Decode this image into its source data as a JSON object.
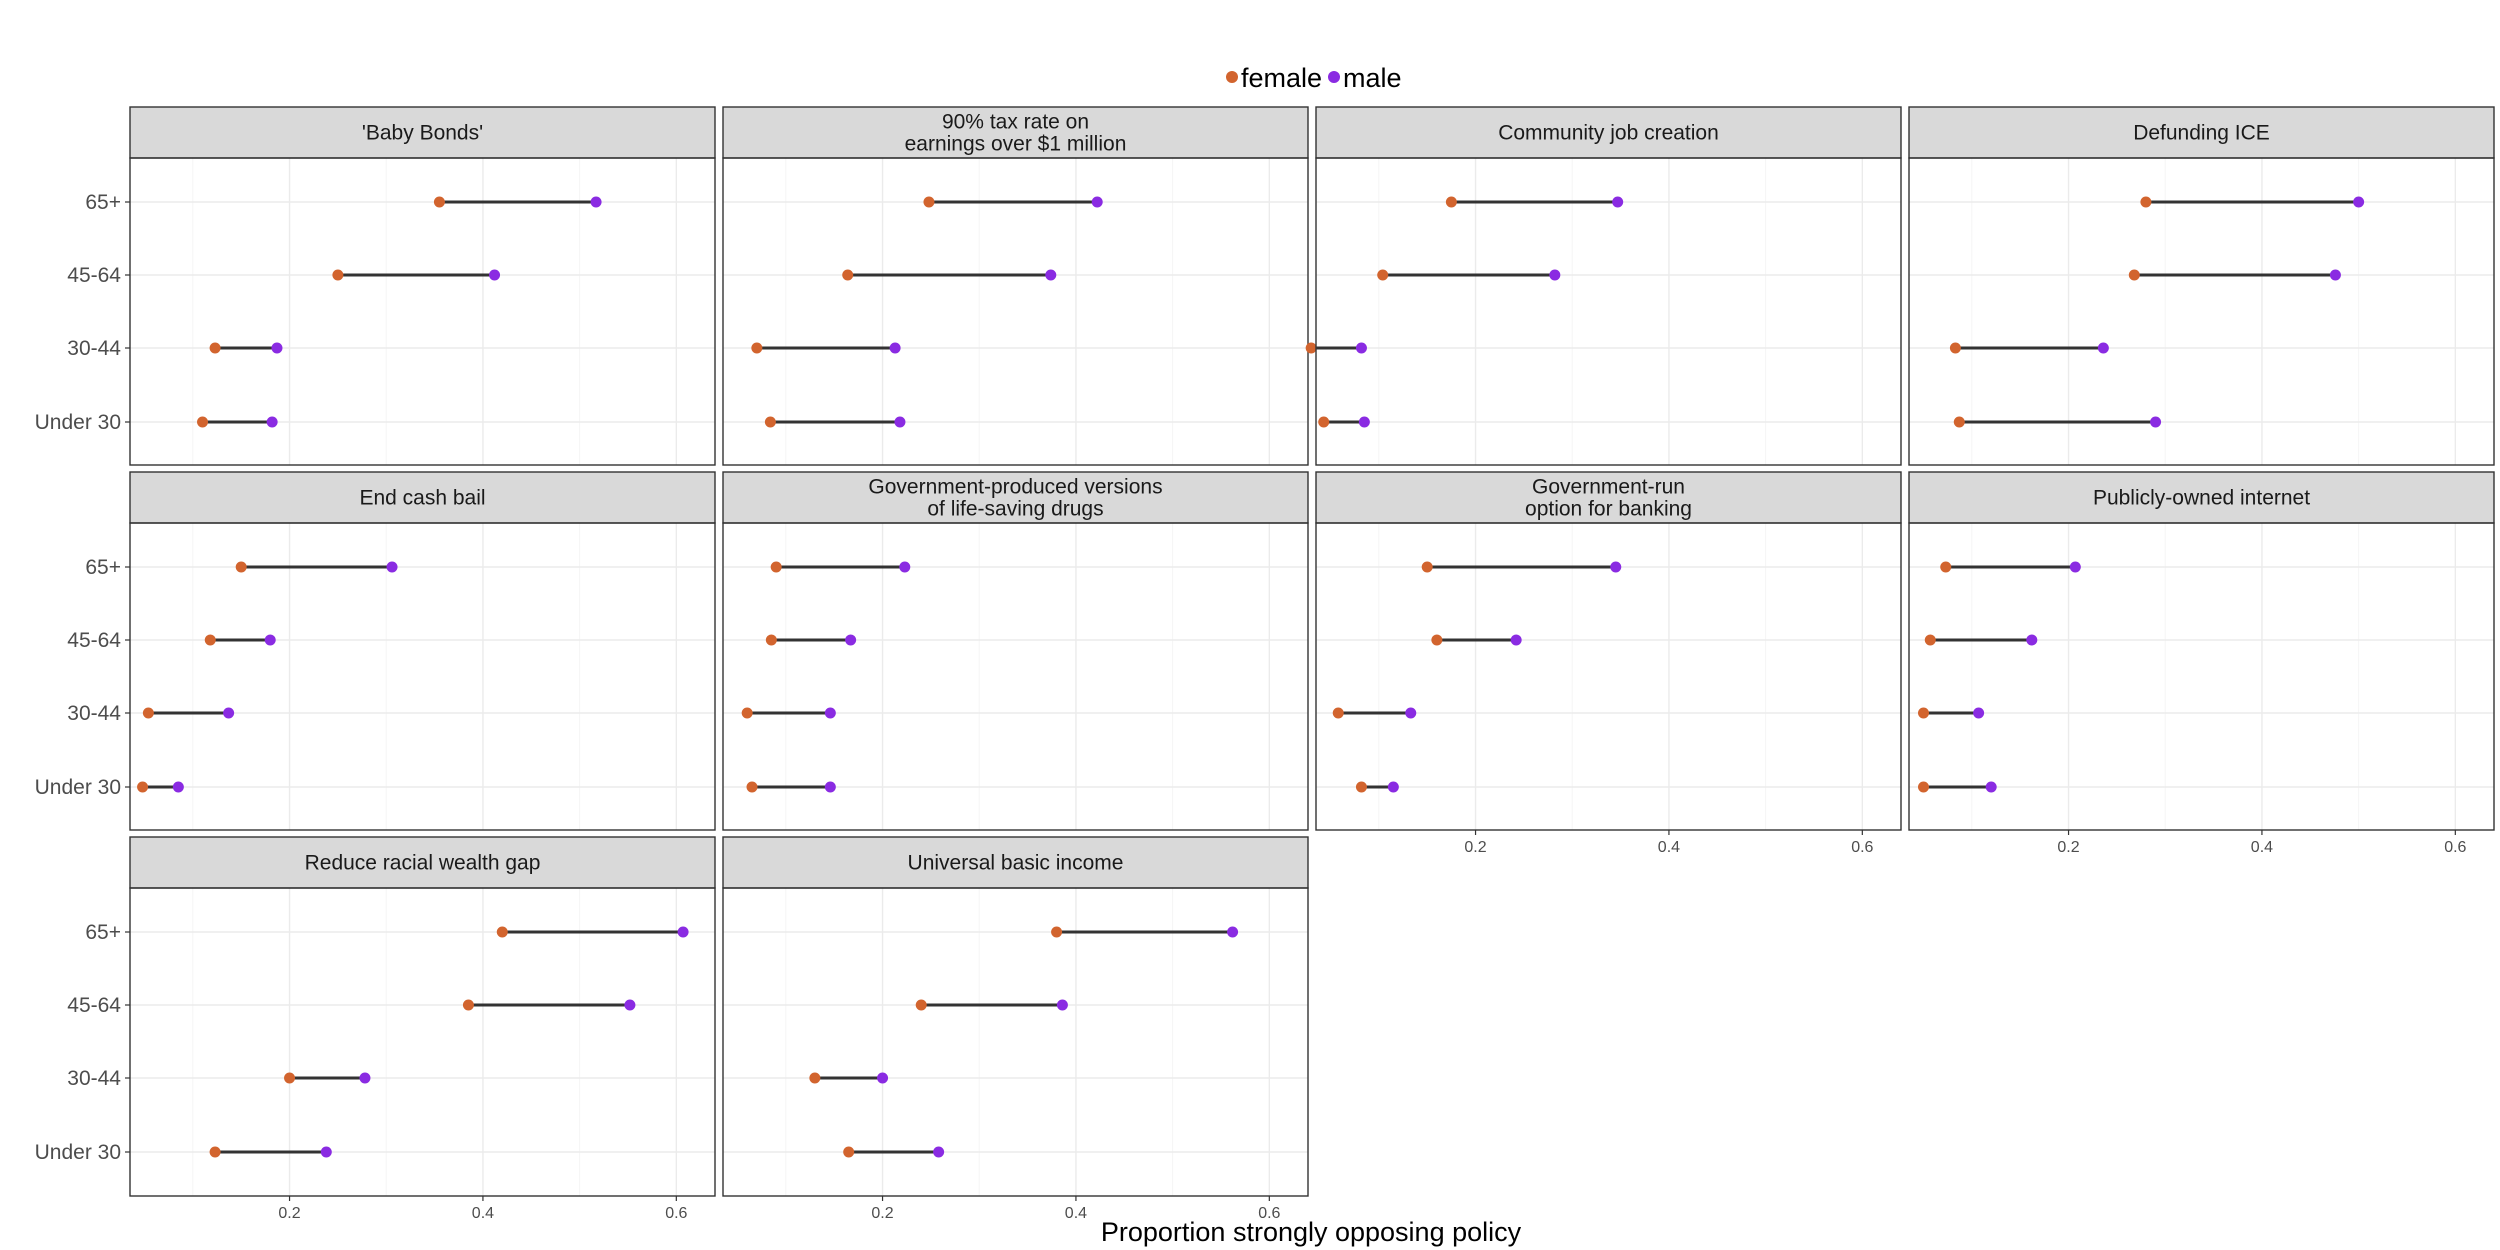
{
  "colors": {
    "female": "#d2642e",
    "male": "#8a2be2",
    "segment": "#333333",
    "strip": "#d9d9d9",
    "grid_major": "#ebebeb",
    "grid_minor": "#f5f5f5"
  },
  "chart_data": {
    "type": "dumbbell",
    "xlabel": "Proportion strongly opposing policy",
    "ylabel": "",
    "xlim": [
      0.035,
      0.64
    ],
    "xticks": [
      0.2,
      0.4,
      0.6
    ],
    "xtick_labels": [
      "0.2",
      "0.4",
      "0.6"
    ],
    "categories": [
      "65+",
      "45-64",
      "30-44",
      "Under 30"
    ],
    "legend": [
      {
        "key": "female",
        "label": "female"
      },
      {
        "key": "male",
        "label": "male"
      }
    ],
    "legend_position": "top",
    "grid": true,
    "panels": [
      {
        "title": "'Baby Bonds'",
        "female": [
          0.355,
          0.25,
          0.123,
          0.11
        ],
        "male": [
          0.517,
          0.412,
          0.187,
          0.182
        ]
      },
      {
        "title": "90% tax rate on\nearnings over $1 million",
        "female": [
          0.248,
          0.164,
          0.07,
          0.084
        ],
        "male": [
          0.422,
          0.374,
          0.213,
          0.218
        ]
      },
      {
        "title": "Community job creation",
        "female": [
          0.175,
          0.104,
          0.03,
          0.043
        ],
        "male": [
          0.347,
          0.282,
          0.082,
          0.085
        ]
      },
      {
        "title": "Defunding ICE",
        "female": [
          0.28,
          0.268,
          0.083,
          0.087
        ],
        "male": [
          0.5,
          0.476,
          0.236,
          0.29
        ]
      },
      {
        "title": "End cash bail",
        "female": [
          0.15,
          0.118,
          0.054,
          0.048
        ],
        "male": [
          0.306,
          0.18,
          0.137,
          0.085
        ]
      },
      {
        "title": "Government-produced versions\nof life-saving drugs",
        "female": [
          0.09,
          0.085,
          0.06,
          0.065
        ],
        "male": [
          0.223,
          0.167,
          0.146,
          0.146
        ]
      },
      {
        "title": "Government-run\noption for banking",
        "female": [
          0.15,
          0.16,
          0.058,
          0.082
        ],
        "male": [
          0.345,
          0.242,
          0.133,
          0.115
        ]
      },
      {
        "title": "Publicly-owned internet",
        "female": [
          0.073,
          0.057,
          0.05,
          0.05
        ],
        "male": [
          0.207,
          0.162,
          0.107,
          0.12
        ]
      },
      {
        "title": "Reduce racial wealth gap",
        "female": [
          0.42,
          0.385,
          0.2,
          0.123
        ],
        "male": [
          0.607,
          0.552,
          0.278,
          0.238
        ]
      },
      {
        "title": "Universal basic income",
        "female": [
          0.38,
          0.24,
          0.13,
          0.165
        ],
        "male": [
          0.562,
          0.386,
          0.2,
          0.258
        ]
      }
    ]
  }
}
